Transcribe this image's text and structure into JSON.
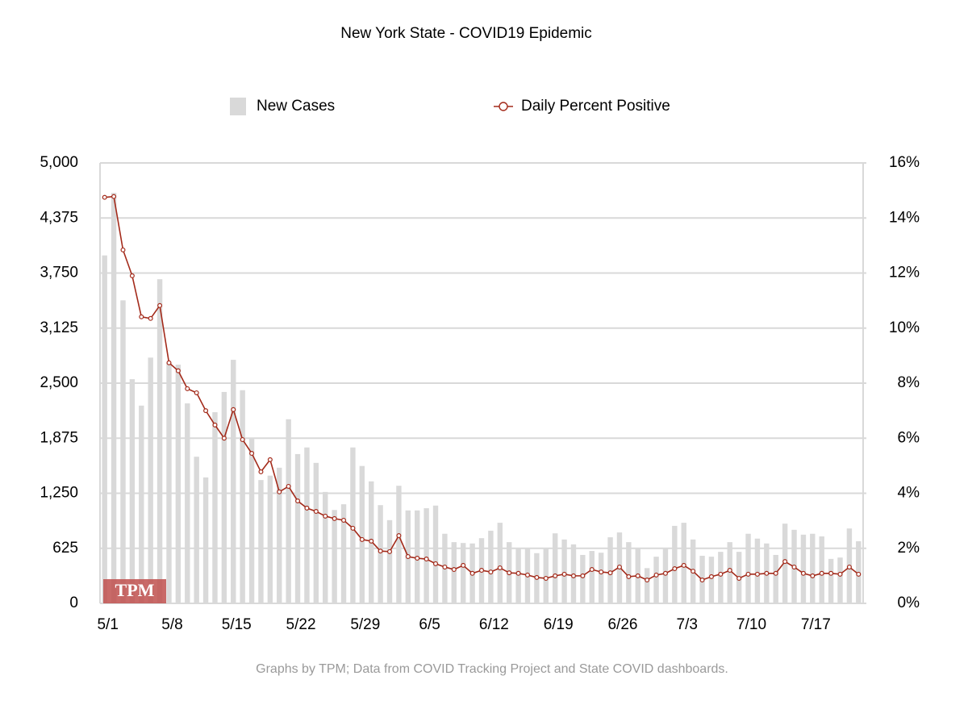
{
  "chart_data": {
    "type": "bar_line",
    "title": "New York State - COVID19 Epidemic",
    "source": "Graphs by TPM; Data from COVID Tracking Project and State COVID dashboards.",
    "logo": "TPM",
    "categories": [
      "5/1",
      null,
      null,
      null,
      null,
      null,
      null,
      "5/8",
      null,
      null,
      null,
      null,
      null,
      null,
      "5/15",
      null,
      null,
      null,
      null,
      null,
      null,
      "5/22",
      null,
      null,
      null,
      null,
      null,
      null,
      "5/29",
      null,
      null,
      null,
      null,
      null,
      null,
      "6/5",
      null,
      null,
      null,
      null,
      null,
      null,
      "6/12",
      null,
      null,
      null,
      null,
      null,
      null,
      "6/19",
      null,
      null,
      null,
      null,
      null,
      null,
      "6/26",
      null,
      null,
      null,
      null,
      null,
      null,
      "7/3",
      null,
      null,
      null,
      null,
      null,
      null,
      "7/10",
      null,
      null,
      null,
      null,
      null,
      null,
      "7/17",
      null,
      null,
      null,
      null,
      null
    ],
    "series": [
      {
        "name": "New Cases",
        "type": "bar",
        "color": "#d9d9d9",
        "axis": "y",
        "values": [
          3950,
          4660,
          3440,
          2545,
          2245,
          2790,
          3680,
          2730,
          2710,
          2270,
          1665,
          1430,
          2170,
          2400,
          2765,
          2420,
          1880,
          1400,
          1450,
          1540,
          2090,
          1695,
          1770,
          1595,
          1265,
          1060,
          1125,
          1770,
          1560,
          1385,
          1115,
          945,
          1335,
          1055,
          1055,
          1080,
          1110,
          790,
          695,
          685,
          680,
          740,
          825,
          915,
          695,
          625,
          625,
          570,
          625,
          795,
          725,
          670,
          550,
          595,
          575,
          750,
          805,
          695,
          630,
          400,
          530,
          625,
          880,
          915,
          725,
          540,
          530,
          585,
          695,
          585,
          790,
          735,
          680,
          550,
          905,
          835,
          780,
          790,
          760,
          505,
          520,
          850,
          705
        ]
      },
      {
        "name": "Daily Percent Positive",
        "type": "line",
        "color": "#a32a1a",
        "axis": "y2",
        "values": [
          14.75,
          14.78,
          12.84,
          11.9,
          10.41,
          10.35,
          10.82,
          8.74,
          8.45,
          7.8,
          7.65,
          7.0,
          6.48,
          6.0,
          7.04,
          5.95,
          5.45,
          4.78,
          5.22,
          4.05,
          4.25,
          3.72,
          3.46,
          3.34,
          3.17,
          3.08,
          3.02,
          2.73,
          2.32,
          2.26,
          1.9,
          1.88,
          2.46,
          1.7,
          1.64,
          1.61,
          1.44,
          1.32,
          1.23,
          1.38,
          1.09,
          1.2,
          1.14,
          1.29,
          1.11,
          1.09,
          1.03,
          0.94,
          0.91,
          1.0,
          1.06,
          1.0,
          1.0,
          1.23,
          1.14,
          1.11,
          1.32,
          0.97,
          1.0,
          0.85,
          1.03,
          1.09,
          1.26,
          1.38,
          1.17,
          0.85,
          0.97,
          1.06,
          1.2,
          0.91,
          1.06,
          1.06,
          1.09,
          1.09,
          1.52,
          1.32,
          1.09,
          1.0,
          1.09,
          1.09,
          1.06,
          1.32,
          1.06
        ]
      }
    ],
    "ylim": [
      0,
      5000
    ],
    "yticks": [
      0,
      625,
      {
        "value": 1250,
        "label": "1,250"
      },
      {
        "value": 1875,
        "label": "1,875"
      },
      {
        "value": 2500,
        "label": "2,500"
      },
      {
        "value": 3125,
        "label": "3,125"
      },
      {
        "value": 3750,
        "label": "3,750"
      },
      {
        "value": 4375,
        "label": "4,375"
      },
      {
        "value": 5000,
        "label": "5,000"
      }
    ],
    "y2lim": [
      0,
      16
    ],
    "y2ticks": [
      {
        "value": 0,
        "label": "0%"
      },
      {
        "value": 2,
        "label": "2%"
      },
      {
        "value": 4,
        "label": "4%"
      },
      {
        "value": 6,
        "label": "6%"
      },
      {
        "value": 8,
        "label": "8%"
      },
      {
        "value": 10,
        "label": "10%"
      },
      {
        "value": 12,
        "label": "12%"
      },
      {
        "value": 14,
        "label": "14%"
      },
      {
        "value": 16,
        "label": "16%"
      }
    ],
    "grid": true,
    "legend": "top"
  }
}
